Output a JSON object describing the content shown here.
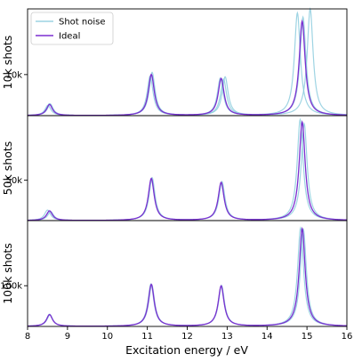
{
  "chart_data": {
    "type": "line",
    "xlabel": "Excitation energy / eV",
    "xlim": [
      8,
      16
    ],
    "x_ticks": [
      8,
      9,
      10,
      11,
      12,
      13,
      14,
      15,
      16
    ],
    "legend": {
      "placement": "top-left",
      "entries": [
        {
          "label": "Shot noise",
          "color": "#86c9dc"
        },
        {
          "label": "Ideal",
          "color": "#7b2fd0"
        }
      ]
    },
    "peak_centers": [
      8.55,
      11.1,
      12.85,
      14.88
    ],
    "panels": [
      {
        "ylabel": "10k shots",
        "y_ticks": [
          10000
        ],
        "y_tick_labels": [
          "10k"
        ],
        "ylim": [
          0,
          26000
        ],
        "ideal_heights": [
          2700,
          10000,
          9000,
          23000
        ],
        "noise_realizations": [
          {
            "center_shifts": [
              0,
              0.02,
              0.06,
              -0.12
            ],
            "heights": [
              2900,
              10500,
              8800,
              25000
            ]
          },
          {
            "center_shifts": [
              -0.04,
              -0.03,
              0.1,
              0.2
            ],
            "heights": [
              2500,
              9600,
              9400,
              26000
            ]
          },
          {
            "center_shifts": [
              0.02,
              0.01,
              -0.02,
              0.02
            ],
            "heights": [
              2800,
              9900,
              9100,
              24000
            ]
          }
        ]
      },
      {
        "ylabel": "50k shots",
        "y_ticks": [
          50000
        ],
        "y_tick_labels": [
          "50k"
        ],
        "ylim": [
          0,
          130000
        ],
        "ideal_heights": [
          12000,
          52000,
          47000,
          122000
        ],
        "noise_realizations": [
          {
            "center_shifts": [
              -0.05,
              0,
              0,
              -0.05
            ],
            "heights": [
              13000,
              51000,
              46000,
              125000
            ]
          },
          {
            "center_shifts": [
              0.03,
              0.02,
              0.02,
              0.05
            ],
            "heights": [
              11000,
              53000,
              48000,
              120000
            ]
          }
        ]
      },
      {
        "ylabel": "100k shots",
        "y_ticks": [
          100000
        ],
        "y_tick_labels": [
          "100k"
        ],
        "ylim": [
          0,
          260000
        ],
        "ideal_heights": [
          29000,
          103000,
          99000,
          240000
        ],
        "noise_realizations": [
          {
            "center_shifts": [
              0,
              -0.01,
              0,
              -0.04
            ],
            "heights": [
              30000,
              104000,
              98000,
              242000
            ]
          },
          {
            "center_shifts": [
              0.01,
              0.01,
              0.01,
              0.03
            ],
            "heights": [
              28000,
              102000,
              100000,
              238000
            ]
          }
        ]
      }
    ]
  }
}
